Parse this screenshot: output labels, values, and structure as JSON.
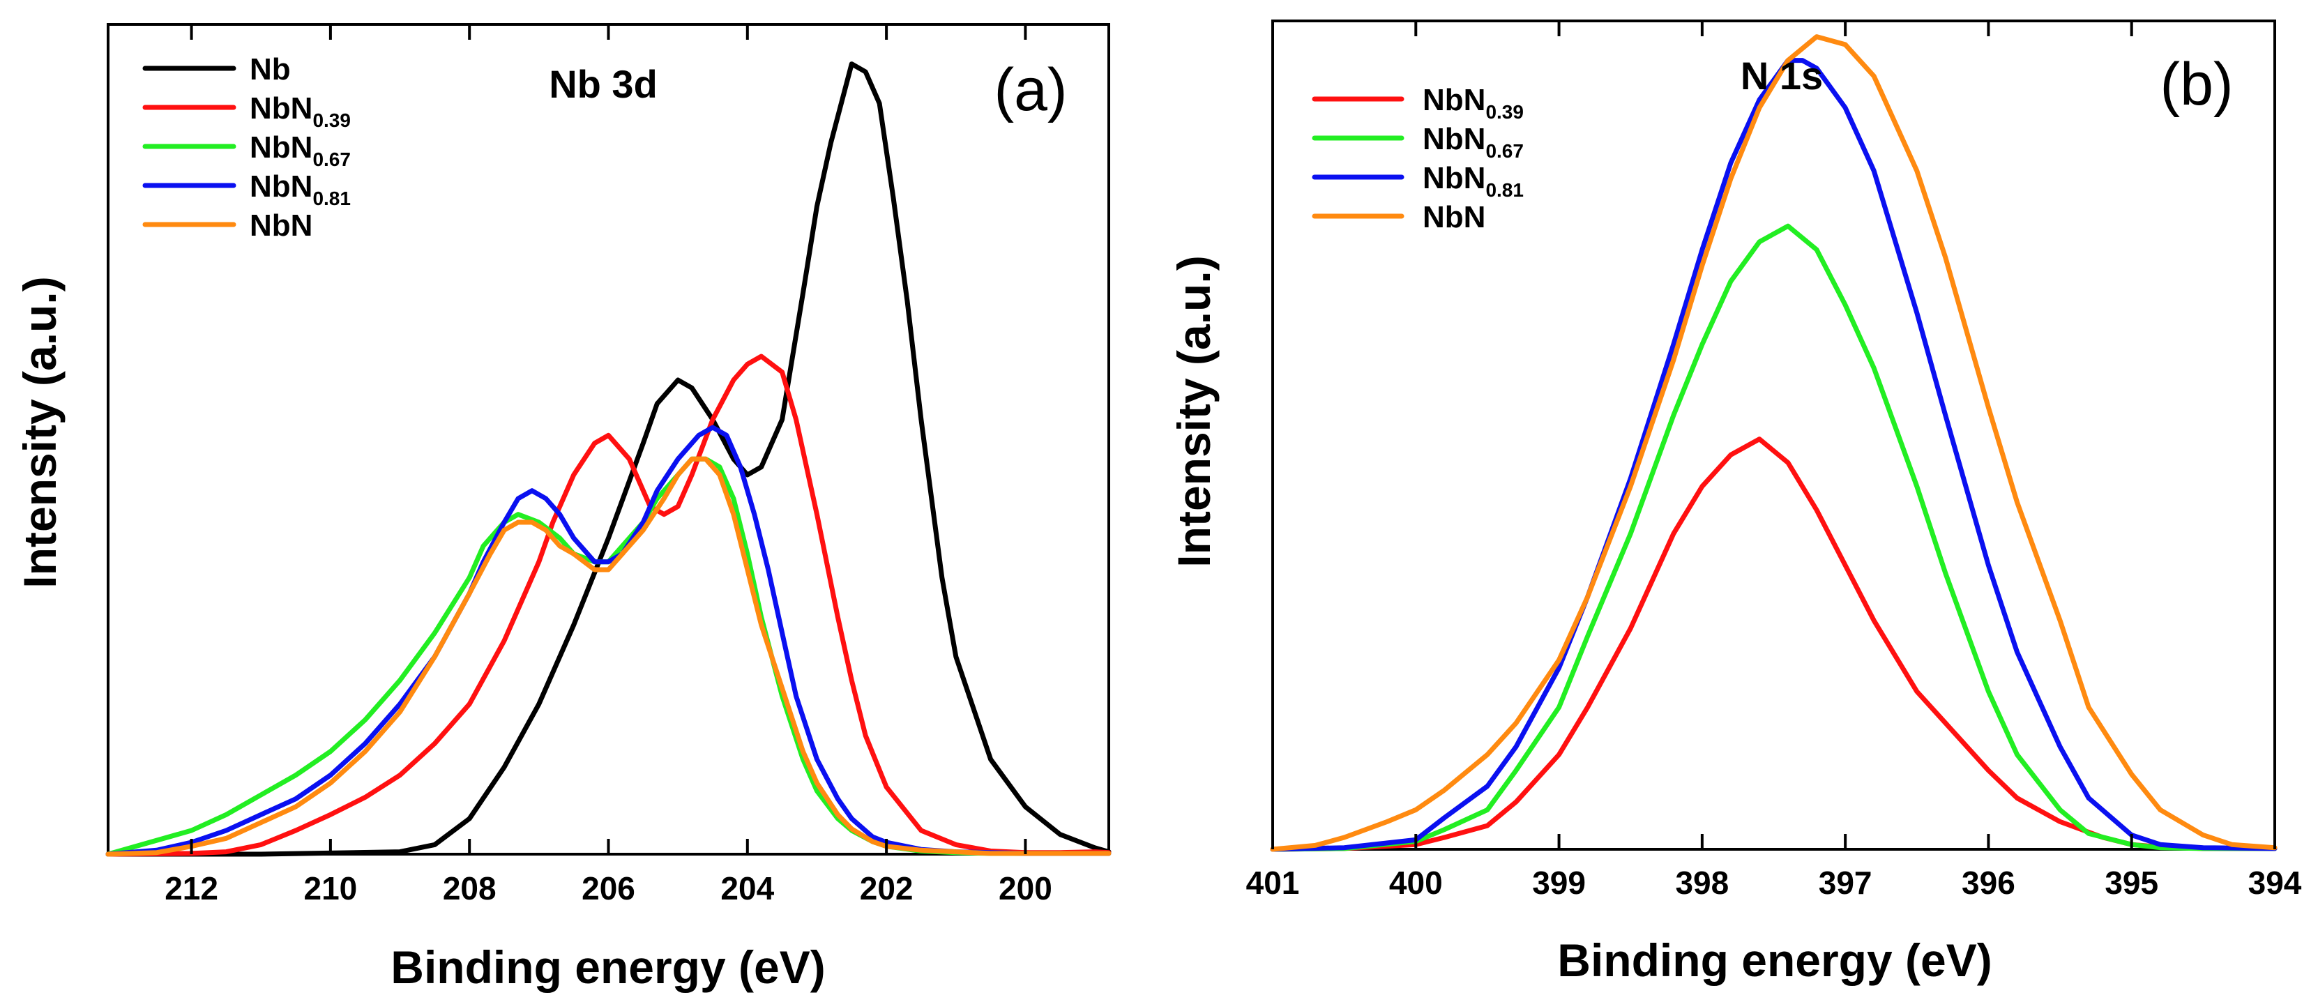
{
  "colors": {
    "Nb": "#000000",
    "NbN0.39": "#ff1010",
    "NbN0.67": "#22ee22",
    "NbN0.81": "#0a10f0",
    "NbN": "#ff8a10"
  },
  "chart_data": [
    {
      "type": "line",
      "panel_tag": "(a)",
      "title": "Nb 3d",
      "xlabel": "Binding energy (eV)",
      "ylabel": "Intensity (a.u.)",
      "xlim": [
        213.2,
        198.8
      ],
      "ylim": [
        0,
        1.05
      ],
      "xticks": [
        "212",
        "210",
        "208",
        "206",
        "204",
        "202",
        "200"
      ],
      "xtick_values": [
        212,
        210,
        208,
        206,
        204,
        202,
        200
      ],
      "legend": [
        {
          "key": "Nb",
          "base": "Nb",
          "sub": ""
        },
        {
          "key": "NbN0.39",
          "base": "NbN",
          "sub": "0.39"
        },
        {
          "key": "NbN0.67",
          "base": "NbN",
          "sub": "0.67"
        },
        {
          "key": "NbN0.81",
          "base": "NbN",
          "sub": "0.81"
        },
        {
          "key": "NbN",
          "base": "NbN",
          "sub": ""
        }
      ],
      "series": [
        {
          "key": "Nb",
          "x": [
            213.2,
            211,
            209,
            208.5,
            208,
            207.5,
            207,
            206.5,
            206,
            205.5,
            205.3,
            205.0,
            204.8,
            204.5,
            204.2,
            204.0,
            203.8,
            203.5,
            203.2,
            203.0,
            202.8,
            202.5,
            202.3,
            202.1,
            201.9,
            201.7,
            201.5,
            201.2,
            201.0,
            200.5,
            200.0,
            199.5,
            199.0,
            198.8
          ],
          "y": [
            0,
            0,
            0.003,
            0.012,
            0.045,
            0.11,
            0.19,
            0.29,
            0.4,
            0.52,
            0.57,
            0.6,
            0.59,
            0.55,
            0.5,
            0.48,
            0.49,
            0.55,
            0.71,
            0.82,
            0.9,
            1.0,
            0.99,
            0.95,
            0.83,
            0.7,
            0.55,
            0.35,
            0.25,
            0.12,
            0.06,
            0.025,
            0.008,
            0.003
          ]
        },
        {
          "key": "NbN0.39",
          "x": [
            213.2,
            212,
            211.5,
            211,
            210.5,
            210,
            209.5,
            209,
            208.5,
            208,
            207.5,
            207,
            206.8,
            206.5,
            206.2,
            206.0,
            205.7,
            205.4,
            205.2,
            205.0,
            204.8,
            204.5,
            204.2,
            204.0,
            203.8,
            203.5,
            203.3,
            203.0,
            202.7,
            202.5,
            202.3,
            202.0,
            201.5,
            201.0,
            200.5,
            200.0,
            199.5,
            199.0,
            198.8
          ],
          "y": [
            0,
            0.001,
            0.003,
            0.012,
            0.03,
            0.05,
            0.072,
            0.1,
            0.14,
            0.19,
            0.27,
            0.37,
            0.42,
            0.48,
            0.52,
            0.53,
            0.5,
            0.44,
            0.43,
            0.44,
            0.48,
            0.55,
            0.6,
            0.62,
            0.63,
            0.61,
            0.55,
            0.43,
            0.3,
            0.22,
            0.15,
            0.085,
            0.03,
            0.012,
            0.004,
            0.002,
            0.002,
            0.003,
            0.002
          ]
        },
        {
          "key": "NbN0.67",
          "x": [
            213.2,
            212,
            211.5,
            211,
            210.5,
            210,
            209.5,
            209,
            208.5,
            208,
            207.8,
            207.5,
            207.3,
            207.0,
            206.7,
            206.5,
            206.2,
            206.0,
            205.8,
            205.5,
            205.3,
            205.0,
            204.8,
            204.6,
            204.4,
            204.2,
            204.0,
            203.8,
            203.5,
            203.2,
            203.0,
            202.7,
            202.5,
            202.2,
            202.0,
            201.5,
            201.0,
            200.5,
            200.0,
            199.5,
            199.0,
            198.8
          ],
          "y": [
            0,
            0.03,
            0.05,
            0.075,
            0.1,
            0.13,
            0.17,
            0.22,
            0.28,
            0.35,
            0.39,
            0.42,
            0.43,
            0.42,
            0.4,
            0.38,
            0.37,
            0.37,
            0.39,
            0.42,
            0.45,
            0.48,
            0.5,
            0.5,
            0.49,
            0.45,
            0.38,
            0.3,
            0.2,
            0.12,
            0.08,
            0.045,
            0.03,
            0.016,
            0.01,
            0.004,
            0.002,
            0.001,
            0.001,
            0.001,
            0.001,
            0.001
          ]
        },
        {
          "key": "NbN0.81",
          "x": [
            213.2,
            212.5,
            212,
            211.5,
            211,
            210.5,
            210,
            209.5,
            209,
            208.5,
            208,
            207.8,
            207.5,
            207.3,
            207.1,
            206.9,
            206.7,
            206.5,
            206.2,
            206.0,
            205.8,
            205.5,
            205.3,
            205.0,
            204.7,
            204.5,
            204.3,
            204.1,
            203.9,
            203.7,
            203.5,
            203.3,
            203.0,
            202.7,
            202.5,
            202.2,
            202.0,
            201.5,
            201.0,
            200.5,
            200.0,
            199.5,
            199.0,
            198.8
          ],
          "y": [
            0,
            0.005,
            0.015,
            0.03,
            0.05,
            0.07,
            0.1,
            0.14,
            0.19,
            0.25,
            0.33,
            0.37,
            0.42,
            0.45,
            0.46,
            0.45,
            0.43,
            0.4,
            0.37,
            0.37,
            0.38,
            0.42,
            0.46,
            0.5,
            0.53,
            0.54,
            0.53,
            0.49,
            0.43,
            0.36,
            0.28,
            0.2,
            0.12,
            0.07,
            0.045,
            0.022,
            0.015,
            0.006,
            0.003,
            0.002,
            0.001,
            0.001,
            0.001,
            0.001
          ]
        },
        {
          "key": "NbN",
          "x": [
            213.2,
            212.5,
            212,
            211.5,
            211,
            210.5,
            210,
            209.5,
            209,
            208.5,
            208,
            207.7,
            207.5,
            207.3,
            207.1,
            206.9,
            206.7,
            206.5,
            206.2,
            206.0,
            205.8,
            205.5,
            205.2,
            205.0,
            204.8,
            204.6,
            204.4,
            204.2,
            204.0,
            203.8,
            203.5,
            203.2,
            203.0,
            202.7,
            202.5,
            202.2,
            202.0,
            201.5,
            201.0,
            200.5,
            200.0,
            199.5,
            199.0,
            198.8
          ],
          "y": [
            0,
            0.002,
            0.01,
            0.02,
            0.04,
            0.06,
            0.09,
            0.13,
            0.18,
            0.25,
            0.33,
            0.38,
            0.41,
            0.42,
            0.42,
            0.41,
            0.39,
            0.38,
            0.36,
            0.36,
            0.38,
            0.41,
            0.45,
            0.48,
            0.5,
            0.5,
            0.48,
            0.43,
            0.36,
            0.29,
            0.21,
            0.13,
            0.09,
            0.05,
            0.032,
            0.016,
            0.01,
            0.005,
            0.003,
            0.001,
            0.001,
            0.001,
            0.001,
            0.001
          ]
        }
      ]
    },
    {
      "type": "line",
      "panel_tag": "(b)",
      "title": "N 1s",
      "xlabel": "Binding energy (eV)",
      "ylabel": "Intensity (a.u.)",
      "xlim": [
        401,
        394
      ],
      "ylim": [
        0,
        1.05
      ],
      "xticks": [
        "401",
        "400",
        "399",
        "398",
        "397",
        "396",
        "395",
        "394"
      ],
      "xtick_values": [
        401,
        400,
        399,
        398,
        397,
        396,
        395,
        394
      ],
      "legend": [
        {
          "key": "NbN0.39",
          "base": "NbN",
          "sub": "0.39"
        },
        {
          "key": "NbN0.67",
          "base": "NbN",
          "sub": "0.67"
        },
        {
          "key": "NbN0.81",
          "base": "NbN",
          "sub": "0.81"
        },
        {
          "key": "NbN",
          "base": "NbN",
          "sub": ""
        }
      ],
      "series": [
        {
          "key": "NbN0.39",
          "x": [
            401,
            400.5,
            400,
            399.8,
            399.5,
            399.3,
            399.0,
            398.8,
            398.5,
            398.2,
            398.0,
            397.8,
            397.6,
            397.4,
            397.2,
            397.0,
            396.8,
            396.5,
            396.2,
            396.0,
            395.8,
            395.5,
            395.2,
            395.0,
            394.8,
            394.5,
            394.0
          ],
          "y": [
            0,
            0.001,
            0.006,
            0.015,
            0.03,
            0.06,
            0.12,
            0.18,
            0.28,
            0.4,
            0.46,
            0.5,
            0.52,
            0.49,
            0.43,
            0.36,
            0.29,
            0.2,
            0.14,
            0.1,
            0.065,
            0.035,
            0.015,
            0.006,
            0.003,
            0.001,
            0.001
          ]
        },
        {
          "key": "NbN0.67",
          "x": [
            401,
            400.5,
            400,
            399.8,
            399.5,
            399.3,
            399.0,
            398.8,
            398.5,
            398.2,
            398.0,
            397.8,
            397.6,
            397.4,
            397.2,
            397.0,
            396.8,
            396.5,
            396.3,
            396.0,
            395.8,
            395.5,
            395.3,
            395.0,
            394.8,
            394.5,
            394.0
          ],
          "y": [
            0,
            0.001,
            0.01,
            0.025,
            0.05,
            0.1,
            0.18,
            0.27,
            0.4,
            0.55,
            0.64,
            0.72,
            0.77,
            0.79,
            0.76,
            0.69,
            0.61,
            0.46,
            0.35,
            0.2,
            0.12,
            0.05,
            0.02,
            0.006,
            0.002,
            0.001,
            0.001
          ]
        },
        {
          "key": "NbN0.81",
          "x": [
            401,
            400.5,
            400,
            399.8,
            399.5,
            399.3,
            399.0,
            398.8,
            398.5,
            398.2,
            398.0,
            397.8,
            397.6,
            397.4,
            397.3,
            397.2,
            397.0,
            396.8,
            396.5,
            396.3,
            396.0,
            395.8,
            395.5,
            395.3,
            395.0,
            394.8,
            394.5,
            394.0
          ],
          "y": [
            0,
            0.002,
            0.012,
            0.04,
            0.08,
            0.13,
            0.23,
            0.32,
            0.47,
            0.64,
            0.76,
            0.87,
            0.95,
            1.0,
            1.0,
            0.99,
            0.94,
            0.86,
            0.68,
            0.55,
            0.36,
            0.25,
            0.13,
            0.065,
            0.018,
            0.006,
            0.002,
            0.001
          ]
        },
        {
          "key": "NbN",
          "x": [
            401,
            400.7,
            400.5,
            400.2,
            400.0,
            399.8,
            399.5,
            399.3,
            399.0,
            398.8,
            398.5,
            398.2,
            398.0,
            397.8,
            397.6,
            397.4,
            397.2,
            397.0,
            396.8,
            396.5,
            396.3,
            396.0,
            395.8,
            395.5,
            395.3,
            395.0,
            394.8,
            394.5,
            394.3,
            394.0
          ],
          "y": [
            0,
            0.005,
            0.015,
            0.035,
            0.05,
            0.075,
            0.12,
            0.16,
            0.24,
            0.32,
            0.46,
            0.62,
            0.74,
            0.85,
            0.94,
            1.0,
            1.03,
            1.02,
            0.98,
            0.86,
            0.75,
            0.56,
            0.44,
            0.29,
            0.18,
            0.095,
            0.05,
            0.018,
            0.006,
            0.002
          ]
        }
      ]
    }
  ]
}
